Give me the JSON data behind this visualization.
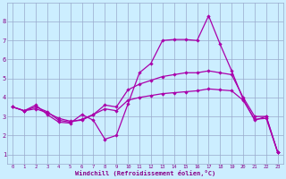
{
  "bg_color": "#cceeff",
  "line_color": "#aa00aa",
  "grid_color": "#99aacc",
  "xlabel": "Windchill (Refroidissement éolien,°C)",
  "xlabel_color": "#880088",
  "tick_color": "#880088",
  "xlim": [
    -0.5,
    23.5
  ],
  "ylim": [
    0.5,
    9.0
  ],
  "yticks": [
    1,
    2,
    3,
    4,
    5,
    6,
    7,
    8
  ],
  "xticks": [
    0,
    1,
    2,
    3,
    4,
    5,
    6,
    7,
    8,
    9,
    10,
    11,
    12,
    13,
    14,
    15,
    16,
    17,
    18,
    19,
    20,
    21,
    22,
    23
  ],
  "line1_x": [
    0,
    1,
    2,
    3,
    4,
    5,
    6,
    7,
    8,
    9,
    10,
    11,
    12,
    13,
    14,
    15,
    16,
    17,
    18,
    19,
    20,
    21,
    22,
    23
  ],
  "line1_y": [
    3.5,
    3.3,
    3.6,
    3.1,
    2.7,
    2.65,
    3.1,
    2.8,
    1.8,
    2.0,
    3.65,
    5.3,
    5.8,
    7.0,
    7.05,
    7.05,
    7.0,
    8.3,
    6.8,
    5.4,
    3.9,
    2.8,
    3.0,
    1.1
  ],
  "line2_x": [
    0,
    1,
    2,
    3,
    4,
    5,
    6,
    7,
    8,
    9,
    10,
    11,
    12,
    13,
    14,
    15,
    16,
    17,
    18,
    19,
    20,
    21,
    22,
    23
  ],
  "line2_y": [
    3.5,
    3.3,
    3.5,
    3.25,
    2.8,
    2.7,
    2.85,
    3.1,
    3.6,
    3.5,
    4.4,
    4.7,
    4.9,
    5.1,
    5.2,
    5.3,
    5.3,
    5.4,
    5.3,
    5.2,
    4.0,
    3.0,
    3.0,
    1.1
  ],
  "line3_x": [
    0,
    1,
    2,
    3,
    4,
    5,
    6,
    7,
    8,
    9,
    10,
    11,
    12,
    13,
    14,
    15,
    16,
    17,
    18,
    19,
    20,
    21,
    22,
    23
  ],
  "line3_y": [
    3.5,
    3.3,
    3.4,
    3.2,
    2.9,
    2.75,
    2.8,
    3.1,
    3.4,
    3.3,
    3.85,
    4.0,
    4.1,
    4.2,
    4.25,
    4.3,
    4.35,
    4.45,
    4.4,
    4.35,
    3.85,
    2.85,
    2.9,
    1.1
  ]
}
